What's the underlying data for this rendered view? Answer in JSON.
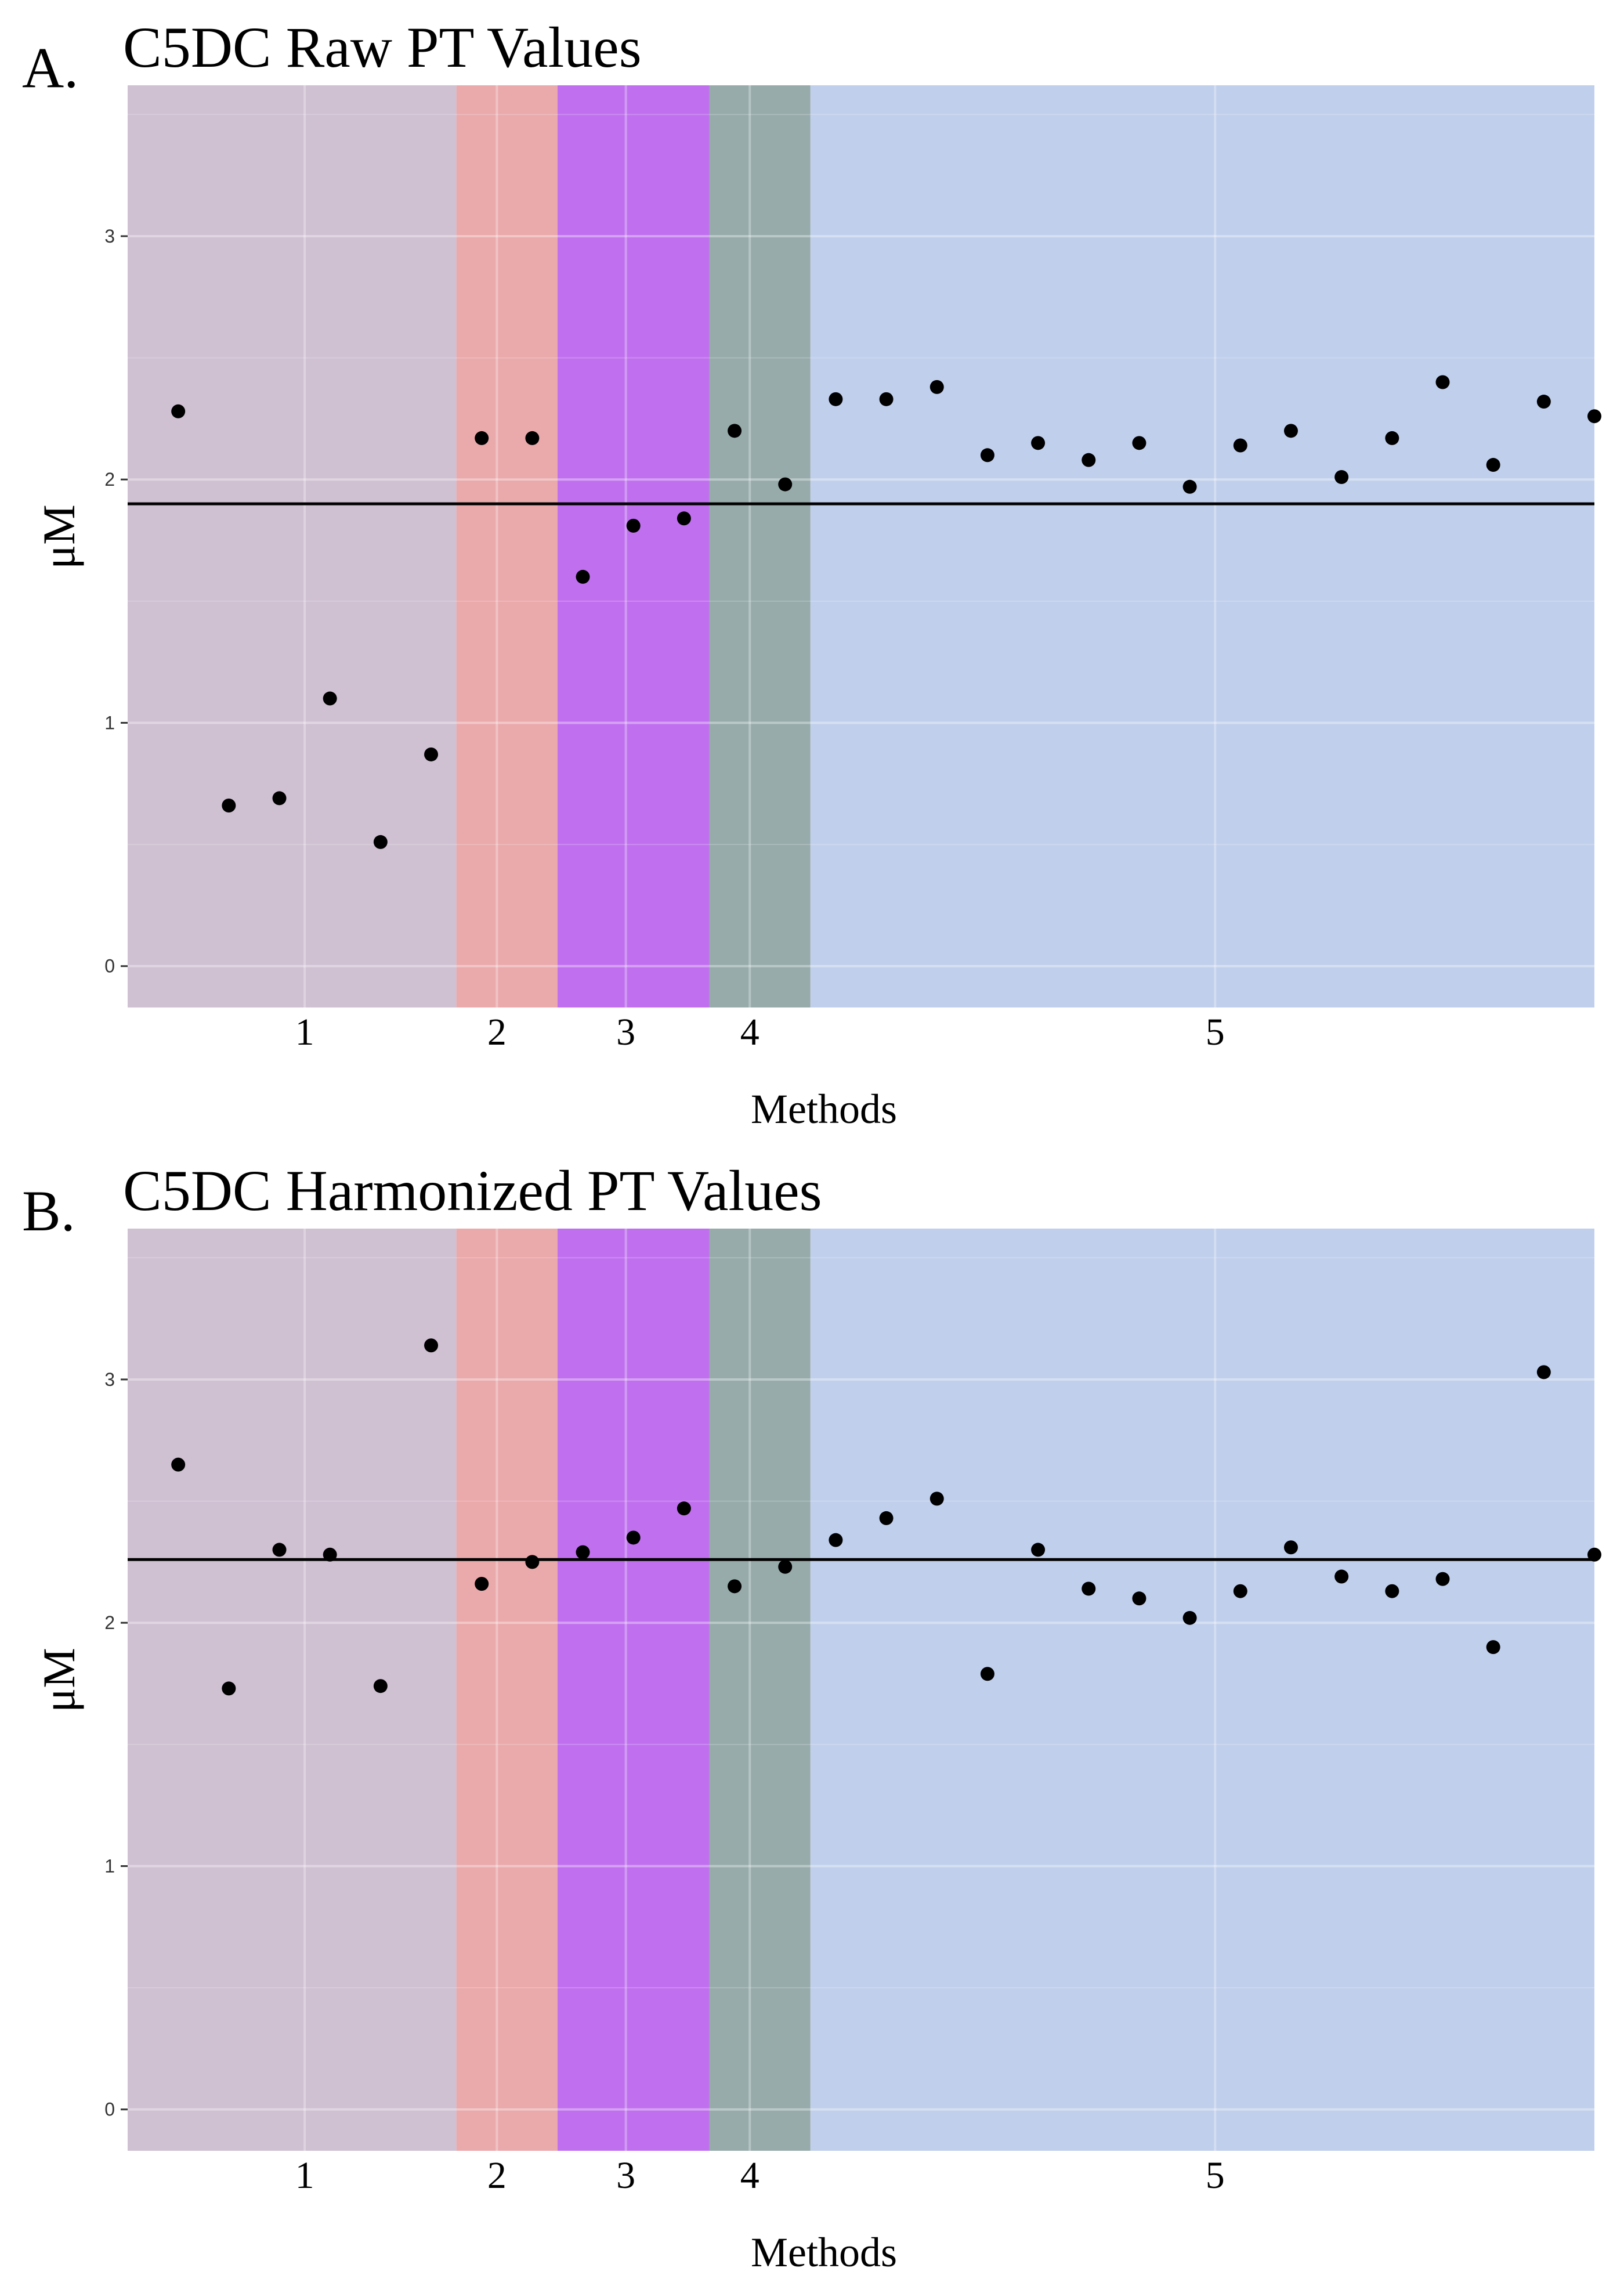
{
  "chart_data": [
    {
      "type": "scatter",
      "panel_label": "A.",
      "title": "C5DC Raw PT Values",
      "xlabel": "Methods",
      "ylabel": "μM",
      "ylim": [
        -0.17,
        3.62
      ],
      "xlim": [
        0,
        29
      ],
      "y_ticks": [
        "0",
        "1",
        "2",
        "3"
      ],
      "grid": true,
      "method_groups": [
        {
          "label": "1",
          "x_start": 0,
          "x_end": 6.5,
          "label_x": 3.5,
          "color": "#cfc0d2"
        },
        {
          "label": "2",
          "x_start": 6.5,
          "x_end": 8.5,
          "label_x": 7.3,
          "color": "#eaa9ab"
        },
        {
          "label": "3",
          "x_start": 8.5,
          "x_end": 11.5,
          "label_x": 9.85,
          "color": "#c070ef"
        },
        {
          "label": "4",
          "x_start": 11.5,
          "x_end": 13.5,
          "label_x": 12.3,
          "color": "#97abab"
        },
        {
          "label": "5",
          "x_start": 13.5,
          "x_end": 29,
          "label_x": 21.5,
          "color": "#c0cfec"
        }
      ],
      "reference_line": 1.9,
      "x": [
        1,
        2,
        3,
        4,
        5,
        6,
        7,
        8,
        9,
        10,
        11,
        12,
        13,
        14,
        15,
        16,
        17,
        18,
        19,
        20,
        21,
        22,
        23,
        24,
        25,
        26,
        27,
        28,
        29
      ],
      "values": [
        2.28,
        0.66,
        0.69,
        1.1,
        0.51,
        0.87,
        2.17,
        2.17,
        1.6,
        1.81,
        1.84,
        2.2,
        1.98,
        2.33,
        2.33,
        2.38,
        2.1,
        2.15,
        2.08,
        2.15,
        1.97,
        2.14,
        2.2,
        2.01,
        2.17,
        2.4,
        2.06,
        2.32,
        2.26
      ]
    },
    {
      "type": "scatter",
      "panel_label": "B.",
      "title": "C5DC Harmonized PT Values",
      "xlabel": "Methods",
      "ylabel": "μM",
      "ylim": [
        -0.17,
        3.62
      ],
      "xlim": [
        0,
        29
      ],
      "y_ticks": [
        "0",
        "1",
        "2",
        "3"
      ],
      "grid": true,
      "method_groups": [
        {
          "label": "1",
          "x_start": 0,
          "x_end": 6.5,
          "label_x": 3.5,
          "color": "#cfc0d2"
        },
        {
          "label": "2",
          "x_start": 6.5,
          "x_end": 8.5,
          "label_x": 7.3,
          "color": "#eaa9ab"
        },
        {
          "label": "3",
          "x_start": 8.5,
          "x_end": 11.5,
          "label_x": 9.85,
          "color": "#c070ef"
        },
        {
          "label": "4",
          "x_start": 11.5,
          "x_end": 13.5,
          "label_x": 12.3,
          "color": "#97abab"
        },
        {
          "label": "5",
          "x_start": 13.5,
          "x_end": 29,
          "label_x": 21.5,
          "color": "#c0cfec"
        }
      ],
      "reference_line": 2.26,
      "x": [
        1,
        2,
        3,
        4,
        5,
        6,
        7,
        8,
        9,
        10,
        11,
        12,
        13,
        14,
        15,
        16,
        17,
        18,
        19,
        20,
        21,
        22,
        23,
        24,
        25,
        26,
        27,
        28,
        29
      ],
      "values": [
        2.65,
        1.73,
        2.3,
        2.28,
        1.74,
        3.14,
        2.16,
        2.25,
        2.29,
        2.35,
        2.47,
        2.15,
        2.23,
        2.34,
        2.43,
        2.51,
        1.79,
        2.3,
        2.14,
        2.1,
        2.02,
        2.13,
        2.31,
        2.19,
        2.13,
        2.18,
        1.9,
        3.03,
        2.28
      ]
    }
  ]
}
